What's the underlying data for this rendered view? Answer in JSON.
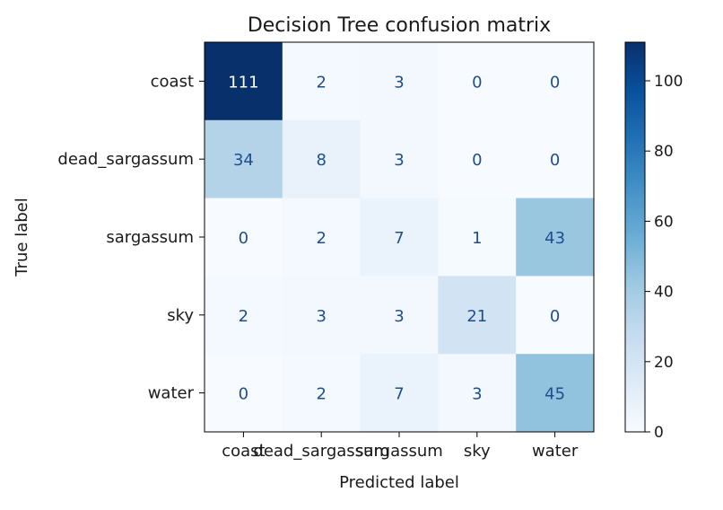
{
  "chart_data": {
    "type": "heatmap",
    "title": "Decision Tree confusion matrix",
    "xlabel": "Predicted label",
    "ylabel": "True label",
    "x_categories": [
      "coast",
      "dead_sargassum",
      "sargassum",
      "sky",
      "water"
    ],
    "y_categories": [
      "coast",
      "dead_sargassum",
      "sargassum",
      "sky",
      "water"
    ],
    "values": [
      [
        111,
        2,
        3,
        0,
        0
      ],
      [
        34,
        8,
        3,
        0,
        0
      ],
      [
        0,
        2,
        7,
        1,
        43
      ],
      [
        2,
        3,
        3,
        21,
        0
      ],
      [
        0,
        2,
        7,
        3,
        45
      ]
    ],
    "colormap": "Blues",
    "colorbar": {
      "min": 0,
      "max": 111,
      "ticks": [
        0,
        20,
        40,
        60,
        80,
        100
      ]
    },
    "text_colors": {
      "dark_cell": "#ffffff",
      "light_cell": "#1f4e8c"
    }
  }
}
